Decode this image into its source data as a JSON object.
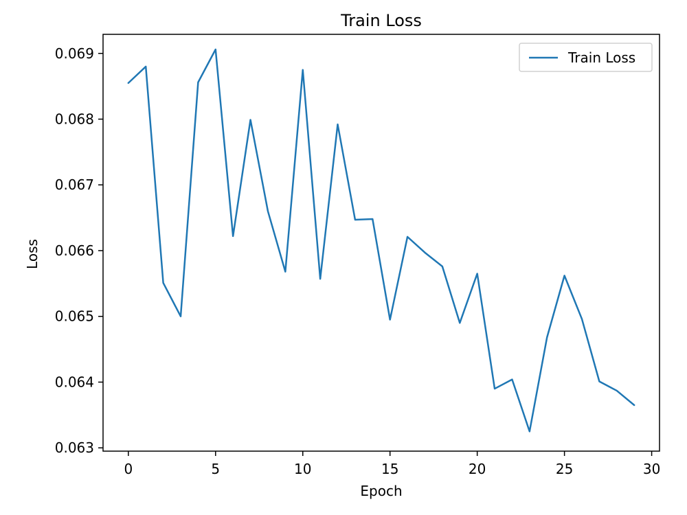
{
  "chart_data": {
    "type": "line",
    "title": "Train Loss",
    "xlabel": "Epoch",
    "ylabel": "Loss",
    "xlim": [
      -1.45,
      30.45
    ],
    "ylim": [
      0.06295,
      0.06929
    ],
    "x_ticks": [
      0,
      5,
      10,
      15,
      20,
      25,
      30
    ],
    "x_tick_labels": [
      "0",
      "5",
      "10",
      "15",
      "20",
      "25",
      "30"
    ],
    "y_ticks": [
      0.063,
      0.064,
      0.065,
      0.066,
      0.067,
      0.068,
      0.069
    ],
    "y_tick_labels": [
      "0.063",
      "0.064",
      "0.065",
      "0.066",
      "0.067",
      "0.068",
      "0.069"
    ],
    "grid": false,
    "legend": "upper right",
    "series": [
      {
        "name": "Train Loss",
        "color": "#1f77b4",
        "x": [
          0,
          1,
          2,
          3,
          4,
          5,
          6,
          7,
          8,
          9,
          10,
          11,
          12,
          13,
          14,
          15,
          16,
          17,
          18,
          19,
          20,
          21,
          22,
          23,
          24,
          25,
          26,
          27,
          28,
          29
        ],
        "values": [
          0.06855,
          0.0688,
          0.06551,
          0.065,
          0.06856,
          0.06906,
          0.06622,
          0.06799,
          0.0666,
          0.06568,
          0.06875,
          0.06557,
          0.06792,
          0.06647,
          0.06648,
          0.06495,
          0.06621,
          0.06597,
          0.06576,
          0.0649,
          0.06565,
          0.0639,
          0.06404,
          0.06325,
          0.06468,
          0.06562,
          0.06496,
          0.06401,
          0.06387,
          0.06365
        ]
      }
    ]
  }
}
